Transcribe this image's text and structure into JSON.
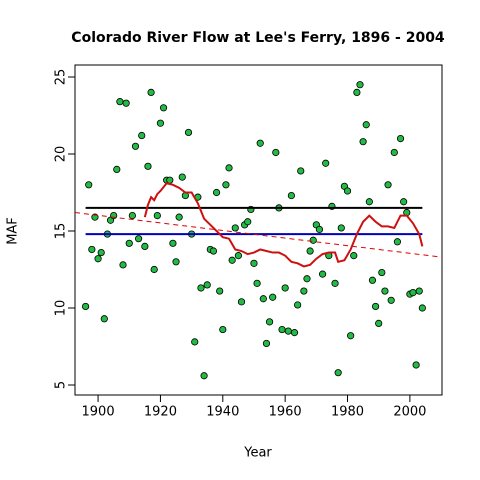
{
  "chart_data": {
    "type": "scatter",
    "title": "Colorado River Flow at Lee's Ferry, 1896 - 2004",
    "x_label": "Year",
    "y_label": "MAF",
    "xlim": [
      1892.6,
      2010.3
    ],
    "ylim": [
      4.35,
      25.78
    ],
    "xticks": [
      1900,
      1920,
      1940,
      1960,
      1980,
      2000
    ],
    "yticks": [
      5,
      10,
      15,
      20,
      25
    ],
    "series": [
      {
        "kind": "points",
        "color": "#22bb44",
        "x": [
          1896,
          1897,
          1898,
          1899,
          1900,
          1901,
          1902,
          1903,
          1904,
          1905,
          1906,
          1907,
          1908,
          1909,
          1910,
          1911,
          1912,
          1913,
          1914,
          1915,
          1916,
          1917,
          1918,
          1919,
          1920,
          1921,
          1922,
          1923,
          1924,
          1925,
          1926,
          1927,
          1928,
          1929,
          1930,
          1931,
          1932,
          1933,
          1934,
          1935,
          1936,
          1937,
          1938,
          1939,
          1940,
          1941,
          1942,
          1943,
          1944,
          1945,
          1946,
          1947,
          1948,
          1949,
          1950,
          1951,
          1952,
          1953,
          1954,
          1955,
          1956,
          1957,
          1958,
          1959,
          1960,
          1961,
          1962,
          1963,
          1964,
          1965,
          1966,
          1967,
          1968,
          1969,
          1970,
          1971,
          1972,
          1973,
          1974,
          1975,
          1976,
          1977,
          1978,
          1979,
          1980,
          1981,
          1982,
          1983,
          1984,
          1985,
          1986,
          1987,
          1988,
          1989,
          1990,
          1991,
          1992,
          1993,
          1994,
          1995,
          1996,
          1997,
          1998,
          1999,
          2000,
          2001,
          2002,
          2003,
          2004
        ],
        "values": [
          10.1,
          18.0,
          13.8,
          15.9,
          13.2,
          13.6,
          9.3,
          14.8,
          15.7,
          16.0,
          19.0,
          23.4,
          12.8,
          23.3,
          14.2,
          16.0,
          20.5,
          14.5,
          21.2,
          14.0,
          19.2,
          24.0,
          12.5,
          16.0,
          22.0,
          23.0,
          18.3,
          18.3,
          14.2,
          13.0,
          15.9,
          18.5,
          17.3,
          21.4,
          14.8,
          7.8,
          17.2,
          11.3,
          5.6,
          11.5,
          13.8,
          13.7,
          17.5,
          11.1,
          8.6,
          18.0,
          19.1,
          13.1,
          15.2,
          13.4,
          10.4,
          15.4,
          15.6,
          16.4,
          12.9,
          11.6,
          20.7,
          10.6,
          7.7,
          9.1,
          10.7,
          20.1,
          16.5,
          8.6,
          11.3,
          8.5,
          17.3,
          8.4,
          10.2,
          18.9,
          11.1,
          11.9,
          13.7,
          14.4,
          15.4,
          15.1,
          12.2,
          19.4,
          13.4,
          16.6,
          11.6,
          5.8,
          15.2,
          17.9,
          17.6,
          8.2,
          13.4,
          24.0,
          24.5,
          20.8,
          21.9,
          16.9,
          11.8,
          10.1,
          9.0,
          12.3,
          11.1,
          18.0,
          10.5,
          20.1,
          14.3,
          21.0,
          16.9,
          16.2,
          10.9,
          11.0,
          6.3,
          11.1,
          10.0
        ]
      },
      {
        "kind": "line",
        "color": "#000000",
        "x": [
          1896,
          2004
        ],
        "values": [
          16.5,
          16.5
        ]
      },
      {
        "kind": "line",
        "color": "#0000bb",
        "x": [
          1896,
          2004
        ],
        "values": [
          14.8,
          14.8
        ]
      },
      {
        "kind": "line",
        "color": "#dd0000",
        "dashed": true,
        "x": [
          1892.6,
          2010.3
        ],
        "values": [
          16.2,
          13.3
        ]
      },
      {
        "kind": "line",
        "color": "#cc1111",
        "x": [
          1915,
          1916,
          1917,
          1918,
          1919,
          1920,
          1922,
          1924,
          1926,
          1928,
          1930,
          1932,
          1934,
          1936,
          1938,
          1940,
          1942,
          1944,
          1946,
          1948,
          1950,
          1952,
          1954,
          1956,
          1958,
          1960,
          1962,
          1964,
          1966,
          1968,
          1970,
          1972,
          1974,
          1976,
          1977,
          1979,
          1981,
          1983,
          1985,
          1987,
          1989,
          1991,
          1993,
          1995,
          1997,
          1999,
          2001,
          2003,
          2004
        ],
        "values": [
          15.9,
          16.7,
          17.2,
          17.0,
          17.4,
          17.6,
          18.1,
          18.0,
          17.8,
          17.5,
          17.5,
          16.8,
          15.8,
          15.4,
          15.0,
          14.6,
          14.5,
          13.8,
          13.7,
          13.5,
          13.6,
          13.8,
          13.7,
          13.6,
          13.6,
          13.4,
          13.0,
          12.9,
          12.7,
          12.8,
          13.2,
          13.5,
          13.6,
          13.6,
          13.0,
          13.1,
          13.8,
          14.8,
          15.6,
          16.0,
          15.6,
          15.3,
          15.3,
          15.2,
          16.0,
          16.0,
          15.5,
          14.8,
          14.0
        ]
      }
    ]
  }
}
